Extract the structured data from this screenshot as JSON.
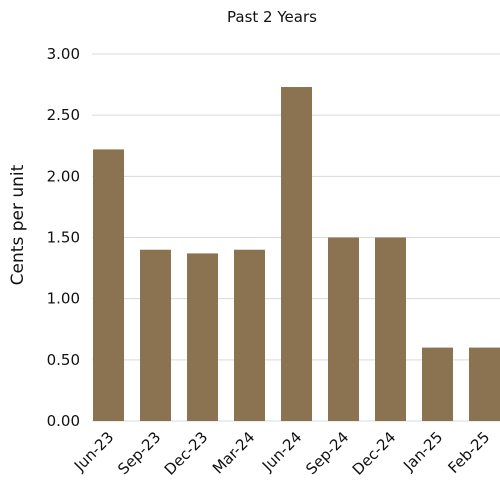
{
  "chart_data": {
    "type": "bar",
    "title": "Past 2 Years",
    "xlabel": "",
    "ylabel": "Cents per unit",
    "categories": [
      "Jun-23",
      "Sep-23",
      "Dec-23",
      "Mar-24",
      "Jun-24",
      "Sep-24",
      "Dec-24",
      "Jan-25",
      "Feb-25"
    ],
    "values": [
      2.22,
      1.4,
      1.37,
      1.4,
      2.73,
      1.5,
      1.5,
      0.6,
      0.6
    ],
    "ylim": [
      0,
      3
    ],
    "yticks": [
      "0.00",
      "0.50",
      "1.00",
      "1.50",
      "2.00",
      "2.50",
      "3.00"
    ],
    "grid": "horizontal",
    "legend": "none",
    "bar_color": "#8b7250"
  }
}
